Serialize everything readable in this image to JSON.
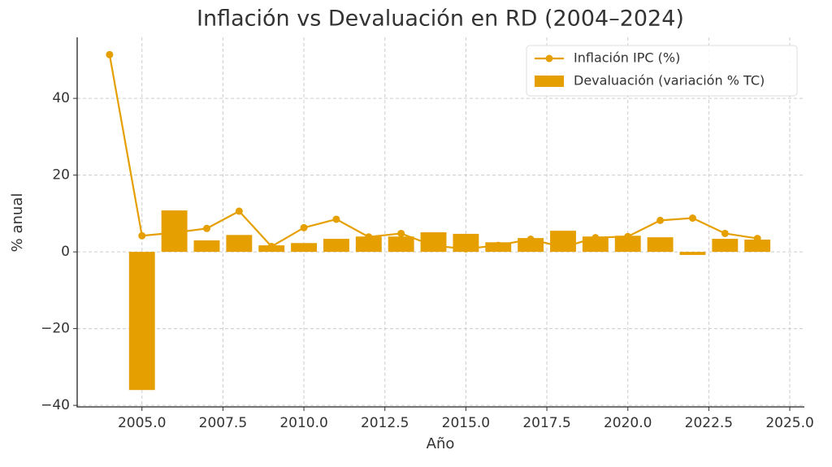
{
  "chart_data": {
    "type": "combo",
    "title": "Inflación vs Devaluación en RD (2004–2024)",
    "x_label": "Año",
    "y_label": "% anual",
    "x": [
      2004,
      2005,
      2006,
      2007,
      2008,
      2009,
      2010,
      2011,
      2012,
      2013,
      2014,
      2015,
      2016,
      2017,
      2018,
      2019,
      2020,
      2021,
      2022,
      2023,
      2024
    ],
    "series": [
      {
        "name": "Inflación IPC (%)",
        "type": "line",
        "color": "#e69f00",
        "values": [
          51.4,
          4.2,
          5.0,
          6.1,
          10.6,
          1.4,
          6.3,
          8.5,
          3.9,
          4.8,
          1.6,
          0.8,
          1.7,
          3.3,
          1.2,
          3.7,
          4.0,
          8.2,
          8.8,
          4.8,
          3.5
        ]
      },
      {
        "name": "Devaluación (variación % TC)",
        "type": "bar",
        "color": "#e69f00",
        "values": [
          null,
          -36.0,
          10.8,
          3.0,
          4.4,
          1.7,
          2.3,
          3.4,
          4.0,
          4.0,
          5.1,
          4.7,
          2.5,
          3.6,
          5.5,
          4.0,
          4.2,
          3.8,
          -0.8,
          3.4,
          3.2
        ]
      }
    ],
    "xlim": [
      2003.0,
      2025.45
    ],
    "ylim": [
      -40.4,
      55.9
    ],
    "xticks": [
      {
        "value": 2005,
        "label": "2005.0"
      },
      {
        "value": 2007.5,
        "label": "2007.5"
      },
      {
        "value": 2010,
        "label": "2010.0"
      },
      {
        "value": 2012.5,
        "label": "2012.5"
      },
      {
        "value": 2015,
        "label": "2015.0"
      },
      {
        "value": 2017.5,
        "label": "2017.5"
      },
      {
        "value": 2020,
        "label": "2020.0"
      },
      {
        "value": 2022.5,
        "label": "2022.5"
      },
      {
        "value": 2025,
        "label": "2025.0"
      }
    ],
    "yticks": [
      {
        "value": -40,
        "label": "−40"
      },
      {
        "value": -20,
        "label": "−20"
      },
      0,
      20,
      40
    ],
    "grid": true,
    "legend": "upper-right"
  }
}
